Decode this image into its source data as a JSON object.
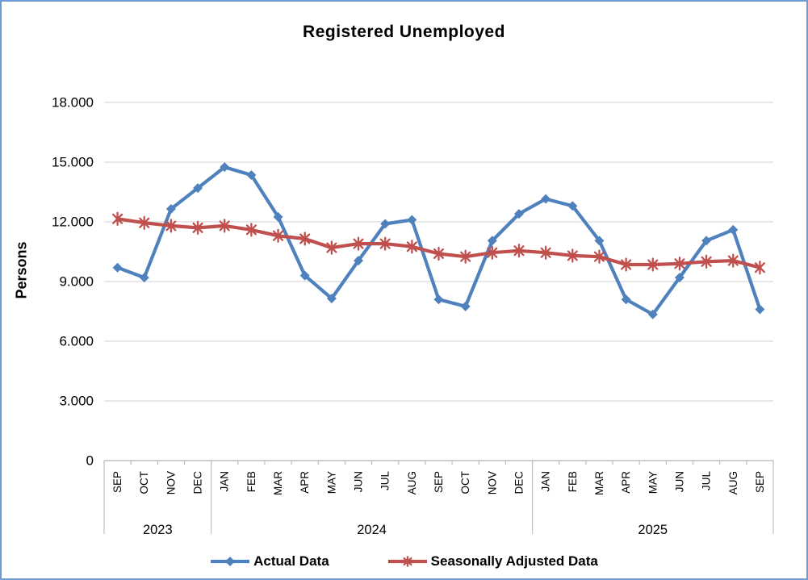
{
  "window": {
    "border_color": "#6C9BD8",
    "background": "#FFFFFF"
  },
  "chart_data": {
    "type": "line",
    "title": "Registered Unemployed",
    "ylabel": "Persons",
    "xlabel": "",
    "ylim": [
      0,
      18000
    ],
    "ytick_interval": 3000,
    "ytick_labels": [
      "0",
      "3.000",
      "6.000",
      "9.000",
      "12.000",
      "15.000",
      "18.000"
    ],
    "grid": true,
    "legend_position": "bottom",
    "categories": [
      "SEP",
      "OCT",
      "NOV",
      "DEC",
      "JAN",
      "FEB",
      "MAR",
      "APR",
      "MAY",
      "JUN",
      "JUL",
      "AUG",
      "SEP",
      "OCT",
      "NOV",
      "DEC",
      "JAN",
      "FEB",
      "MAR",
      "APR",
      "MAY",
      "JUN",
      "JUL",
      "AUG",
      "SEP"
    ],
    "year_groups": [
      {
        "label": "2023",
        "start": 0,
        "count": 4
      },
      {
        "label": "2024",
        "start": 4,
        "count": 12
      },
      {
        "label": "2025",
        "start": 16,
        "count": 9
      }
    ],
    "series": [
      {
        "name": "Actual Data",
        "color": "#4F81BD",
        "marker": "diamond",
        "values": [
          9700,
          9200,
          12650,
          13700,
          14750,
          14350,
          12250,
          9300,
          8150,
          10050,
          11900,
          12100,
          8100,
          7750,
          11050,
          12400,
          13150,
          12800,
          11050,
          8100,
          7350,
          9200,
          11050,
          11600,
          7600
        ]
      },
      {
        "name": "Seasonally Adjusted Data",
        "color": "#C0504D",
        "marker": "star",
        "values": [
          12150,
          11950,
          11800,
          11700,
          11800,
          11600,
          11300,
          11150,
          10700,
          10900,
          10900,
          10750,
          10400,
          10250,
          10450,
          10550,
          10450,
          10300,
          10250,
          9850,
          9850,
          9900,
          10000,
          10050,
          9700
        ]
      }
    ],
    "colors": {
      "gridline": "#D9D9D9",
      "axis": "#BFBFBF",
      "text": "#000000"
    }
  }
}
